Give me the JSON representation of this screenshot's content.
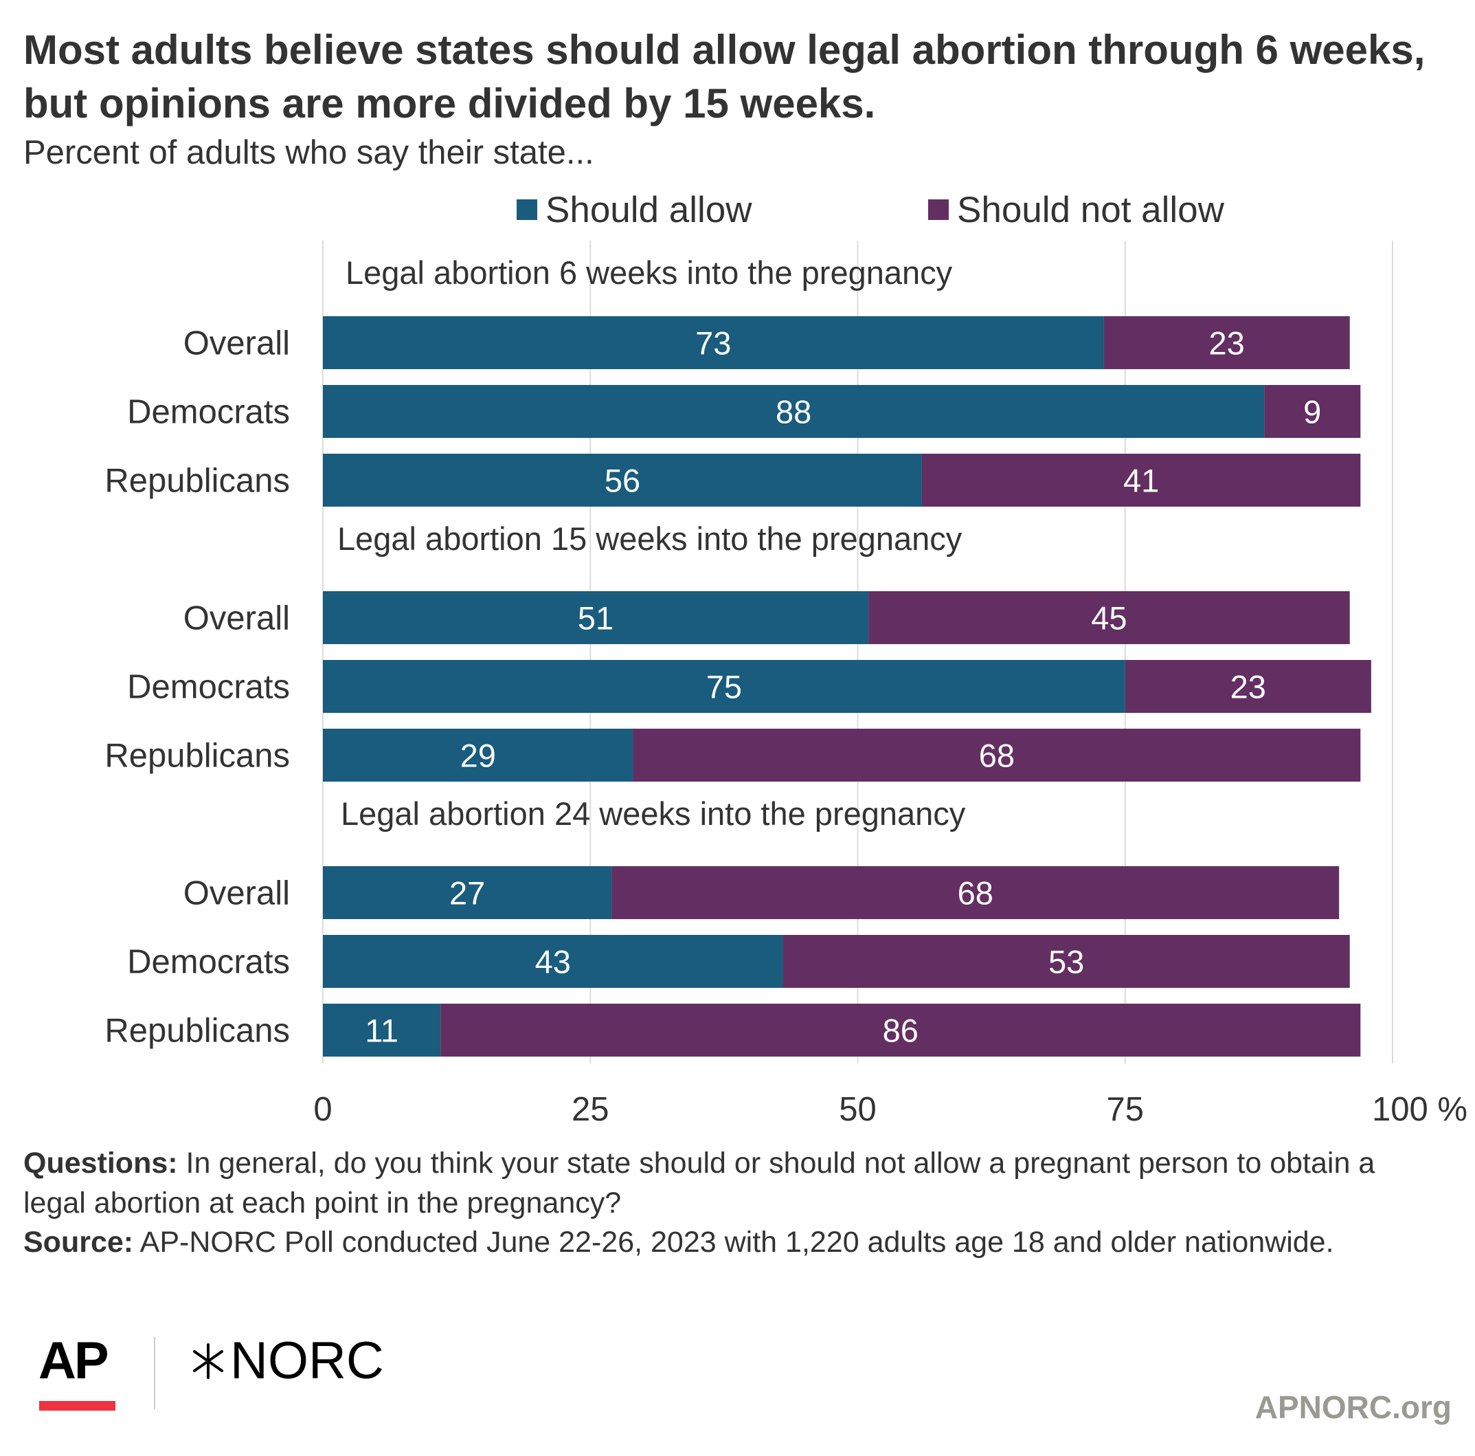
{
  "title": "Most adults believe states should allow legal abortion through 6 weeks, but opinions are more divided by 15 weeks.",
  "subtitle": "Percent of adults who say their state...",
  "legend": {
    "allow": {
      "label": "Should allow",
      "color": "#195c7d"
    },
    "not_allow": {
      "label": "Should not allow",
      "color": "#632f62"
    }
  },
  "chart_data": {
    "type": "bar",
    "orientation": "horizontal",
    "stacked": true,
    "xlim": [
      0,
      100
    ],
    "x_ticks": [
      "0",
      "25",
      "50",
      "75",
      "100 %"
    ],
    "grid": true,
    "groups": [
      {
        "title": "Legal abortion 6 weeks into the pregnancy",
        "rows": [
          {
            "label": "Overall",
            "allow": 73,
            "not_allow": 23
          },
          {
            "label": "Democrats",
            "allow": 88,
            "not_allow": 9
          },
          {
            "label": "Republicans",
            "allow": 56,
            "not_allow": 41
          }
        ]
      },
      {
        "title": "Legal abortion 15 weeks into the pregnancy",
        "rows": [
          {
            "label": "Overall",
            "allow": 51,
            "not_allow": 45
          },
          {
            "label": "Democrats",
            "allow": 75,
            "not_allow": 23
          },
          {
            "label": "Republicans",
            "allow": 29,
            "not_allow": 68
          }
        ]
      },
      {
        "title": "Legal abortion 24 weeks into the pregnancy",
        "rows": [
          {
            "label": "Overall",
            "allow": 27,
            "not_allow": 68
          },
          {
            "label": "Democrats",
            "allow": 43,
            "not_allow": 53
          },
          {
            "label": "Republicans",
            "allow": 11,
            "not_allow": 86
          }
        ]
      }
    ],
    "series": [
      {
        "name": "Should allow",
        "key": "allow",
        "color": "#195c7d"
      },
      {
        "name": "Should not allow",
        "key": "not_allow",
        "color": "#632f62"
      }
    ]
  },
  "footnote": {
    "questions_label": "Questions:",
    "questions_text": " In general, do you think your state should or should not allow a pregnant person to obtain a legal abortion at each point in the pregnancy?",
    "source_label": "Source:",
    "source_text": " AP-NORC Poll conducted June 22-26, 2023 with 1,220 adults age 18 and older nationwide."
  },
  "branding": {
    "ap_logo_text": "AP",
    "norc_logo_text": "NORC",
    "site": "APNORC.org"
  }
}
